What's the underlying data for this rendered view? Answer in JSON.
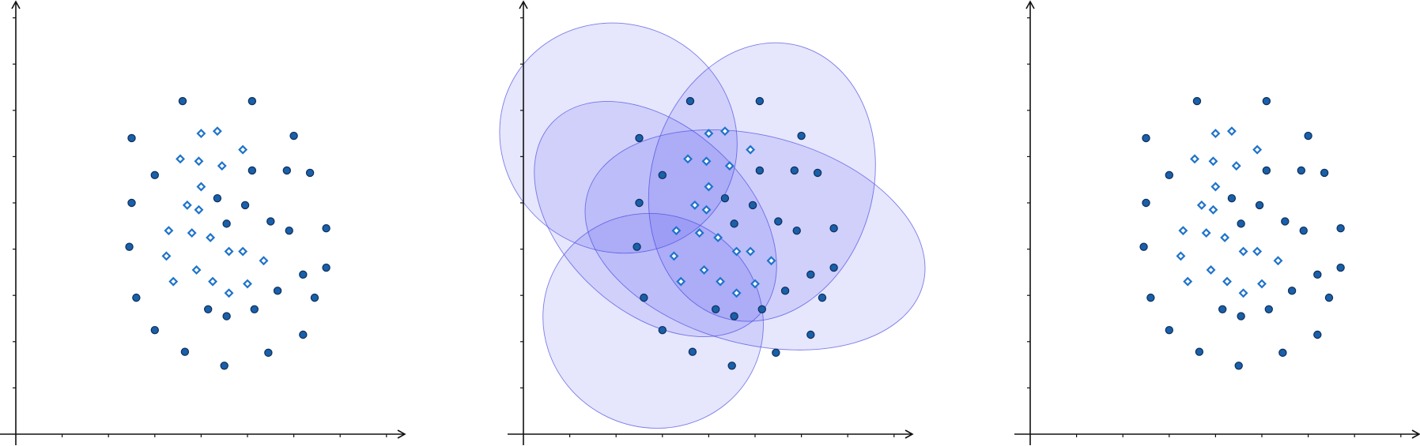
{
  "chart_data": [
    {
      "type": "scatter",
      "show_ellipses": false,
      "xlim": [
        0,
        8.5
      ],
      "ylim": [
        0,
        9.2
      ],
      "series": [
        {
          "marker": "circle",
          "points": [
            [
              3.6,
              7.2
            ],
            [
              5.1,
              7.2
            ],
            [
              2.5,
              6.4
            ],
            [
              6.0,
              6.45
            ],
            [
              3.0,
              5.6
            ],
            [
              5.1,
              5.7
            ],
            [
              5.85,
              5.7
            ],
            [
              6.35,
              5.65
            ],
            [
              2.5,
              5.0
            ],
            [
              4.35,
              5.1
            ],
            [
              4.95,
              4.95
            ],
            [
              4.55,
              4.55
            ],
            [
              5.5,
              4.6
            ],
            [
              5.9,
              4.4
            ],
            [
              6.7,
              4.45
            ],
            [
              2.45,
              4.05
            ],
            [
              6.2,
              3.45
            ],
            [
              6.7,
              3.6
            ],
            [
              5.65,
              3.1
            ],
            [
              2.6,
              2.95
            ],
            [
              6.45,
              2.95
            ],
            [
              4.15,
              2.7
            ],
            [
              4.55,
              2.55
            ],
            [
              5.15,
              2.7
            ],
            [
              3.0,
              2.25
            ],
            [
              6.2,
              2.15
            ],
            [
              3.65,
              1.78
            ],
            [
              5.45,
              1.76
            ],
            [
              4.5,
              1.48
            ]
          ]
        },
        {
          "marker": "diamond",
          "points": [
            [
              4.0,
              6.5
            ],
            [
              4.35,
              6.55
            ],
            [
              4.9,
              6.15
            ],
            [
              3.55,
              5.95
            ],
            [
              3.95,
              5.9
            ],
            [
              4.45,
              5.8
            ],
            [
              4.0,
              5.35
            ],
            [
              3.7,
              4.95
            ],
            [
              3.95,
              4.85
            ],
            [
              3.3,
              4.4
            ],
            [
              3.8,
              4.35
            ],
            [
              4.2,
              4.25
            ],
            [
              3.25,
              3.85
            ],
            [
              4.6,
              3.95
            ],
            [
              4.9,
              3.95
            ],
            [
              5.35,
              3.75
            ],
            [
              3.9,
              3.55
            ],
            [
              3.4,
              3.3
            ],
            [
              4.25,
              3.3
            ],
            [
              5.0,
              3.25
            ],
            [
              4.6,
              3.05
            ]
          ]
        }
      ],
      "colors": {
        "marker_fill": "#1a5fa8",
        "diamond_stroke": "#1f73c9",
        "axis": "#111111"
      }
    },
    {
      "type": "scatter",
      "show_ellipses": true,
      "xlim": [
        0,
        8.5
      ],
      "ylim": [
        0,
        9.2
      ],
      "series": [
        {
          "marker": "circle",
          "points": [
            [
              3.6,
              7.2
            ],
            [
              5.1,
              7.2
            ],
            [
              2.5,
              6.4
            ],
            [
              6.0,
              6.45
            ],
            [
              3.0,
              5.6
            ],
            [
              5.1,
              5.7
            ],
            [
              5.85,
              5.7
            ],
            [
              6.35,
              5.65
            ],
            [
              2.5,
              5.0
            ],
            [
              4.35,
              5.1
            ],
            [
              4.95,
              4.95
            ],
            [
              4.55,
              4.55
            ],
            [
              5.5,
              4.6
            ],
            [
              5.9,
              4.4
            ],
            [
              6.7,
              4.45
            ],
            [
              2.45,
              4.05
            ],
            [
              6.2,
              3.45
            ],
            [
              6.7,
              3.6
            ],
            [
              5.65,
              3.1
            ],
            [
              2.6,
              2.95
            ],
            [
              6.45,
              2.95
            ],
            [
              4.15,
              2.7
            ],
            [
              4.55,
              2.55
            ],
            [
              5.15,
              2.7
            ],
            [
              3.0,
              2.25
            ],
            [
              6.2,
              2.15
            ],
            [
              3.65,
              1.78
            ],
            [
              5.45,
              1.76
            ],
            [
              4.5,
              1.48
            ]
          ]
        },
        {
          "marker": "diamond",
          "points": [
            [
              4.0,
              6.5
            ],
            [
              4.35,
              6.55
            ],
            [
              4.9,
              6.15
            ],
            [
              3.55,
              5.95
            ],
            [
              3.95,
              5.9
            ],
            [
              4.45,
              5.8
            ],
            [
              4.0,
              5.35
            ],
            [
              3.7,
              4.95
            ],
            [
              3.95,
              4.85
            ],
            [
              3.3,
              4.4
            ],
            [
              3.8,
              4.35
            ],
            [
              4.2,
              4.25
            ],
            [
              3.25,
              3.85
            ],
            [
              4.6,
              3.95
            ],
            [
              4.9,
              3.95
            ],
            [
              5.35,
              3.75
            ],
            [
              3.9,
              3.55
            ],
            [
              3.4,
              3.3
            ],
            [
              4.25,
              3.3
            ],
            [
              5.0,
              3.25
            ],
            [
              4.6,
              3.05
            ]
          ]
        }
      ],
      "ellipses": [
        {
          "cx": 2.05,
          "cy": 6.4,
          "rx": 2.6,
          "ry": 2.45,
          "rotate": 30
        },
        {
          "cx": 5.15,
          "cy": 5.45,
          "rx": 2.4,
          "ry": 3.05,
          "rotate": 15
        },
        {
          "cx": 2.85,
          "cy": 4.65,
          "rx": 2.0,
          "ry": 3.05,
          "rotate": -47
        },
        {
          "cx": 5.0,
          "cy": 4.2,
          "rx": 3.75,
          "ry": 2.25,
          "rotate": 15
        },
        {
          "cx": 2.8,
          "cy": 2.45,
          "rx": 2.4,
          "ry": 2.3,
          "rotate": 28
        }
      ],
      "colors": {
        "marker_fill": "#1a5fa8",
        "diamond_stroke": "#1f73c9",
        "ellipse_fill": "#3a3af0",
        "ellipse_stroke": "#4a4ae0",
        "axis": "#111111"
      }
    },
    {
      "type": "scatter",
      "show_ellipses": false,
      "xlim": [
        0,
        8.5
      ],
      "ylim": [
        0,
        9.2
      ],
      "series": [
        {
          "marker": "circle",
          "points": [
            [
              3.6,
              7.2
            ],
            [
              5.1,
              7.2
            ],
            [
              2.5,
              6.4
            ],
            [
              6.0,
              6.45
            ],
            [
              3.0,
              5.6
            ],
            [
              5.1,
              5.7
            ],
            [
              5.85,
              5.7
            ],
            [
              6.35,
              5.65
            ],
            [
              2.5,
              5.0
            ],
            [
              4.35,
              5.1
            ],
            [
              4.95,
              4.95
            ],
            [
              4.55,
              4.55
            ],
            [
              5.5,
              4.6
            ],
            [
              5.9,
              4.4
            ],
            [
              6.7,
              4.45
            ],
            [
              2.45,
              4.05
            ],
            [
              6.2,
              3.45
            ],
            [
              6.7,
              3.6
            ],
            [
              5.65,
              3.1
            ],
            [
              2.6,
              2.95
            ],
            [
              6.45,
              2.95
            ],
            [
              4.15,
              2.7
            ],
            [
              4.55,
              2.55
            ],
            [
              5.15,
              2.7
            ],
            [
              3.0,
              2.25
            ],
            [
              6.2,
              2.15
            ],
            [
              3.65,
              1.78
            ],
            [
              5.45,
              1.76
            ],
            [
              4.5,
              1.48
            ]
          ]
        },
        {
          "marker": "diamond",
          "points": [
            [
              4.0,
              6.5
            ],
            [
              4.35,
              6.55
            ],
            [
              4.9,
              6.15
            ],
            [
              3.55,
              5.95
            ],
            [
              3.95,
              5.9
            ],
            [
              4.45,
              5.8
            ],
            [
              4.0,
              5.35
            ],
            [
              3.7,
              4.95
            ],
            [
              3.95,
              4.85
            ],
            [
              3.3,
              4.4
            ],
            [
              3.8,
              4.35
            ],
            [
              4.2,
              4.25
            ],
            [
              3.25,
              3.85
            ],
            [
              4.6,
              3.95
            ],
            [
              4.9,
              3.95
            ],
            [
              5.35,
              3.75
            ],
            [
              3.9,
              3.55
            ],
            [
              3.4,
              3.3
            ],
            [
              4.25,
              3.3
            ],
            [
              5.0,
              3.25
            ],
            [
              4.6,
              3.05
            ]
          ]
        }
      ],
      "colors": {
        "marker_fill": "#1a5fa8",
        "diamond_stroke": "#1f73c9",
        "axis": "#111111"
      }
    }
  ]
}
